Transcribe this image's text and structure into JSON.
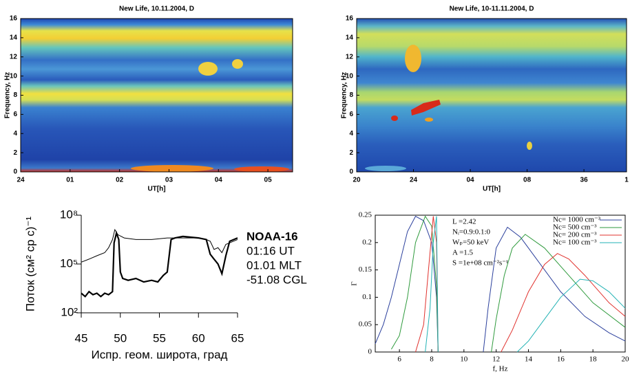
{
  "chart_data": [
    {
      "type": "spectrogram",
      "title": "New Life, 10.11.2004, D",
      "xlabel": "UT[h]",
      "ylabel": "Frequency, Hz",
      "xlim": [
        0,
        5.5
      ],
      "xticks": [
        {
          "value": 0,
          "label": "24"
        },
        {
          "value": 1,
          "label": "01"
        },
        {
          "value": 2,
          "label": "02"
        },
        {
          "value": 3,
          "label": "03"
        },
        {
          "value": 4,
          "label": "04"
        },
        {
          "value": 5,
          "label": "05"
        }
      ],
      "ylim": [
        0,
        16
      ],
      "yticks": [
        0,
        2,
        4,
        6,
        8,
        10,
        12,
        14,
        16
      ]
    },
    {
      "type": "spectrogram",
      "title": "New Life, 10-11.11.2004, D",
      "xlabel": "UT[h]",
      "ylabel": "Frequency, Hz",
      "xlim": [
        20,
        39
      ],
      "xticks": [
        20,
        24,
        {
          "value": 28,
          "label": "04"
        },
        {
          "value": 32,
          "label": "08"
        },
        36,
        {
          "value": 39,
          "label": "1"
        }
      ],
      "ylim": [
        0,
        16
      ],
      "yticks": [
        0,
        2,
        4,
        6,
        8,
        10,
        12,
        14,
        16
      ]
    },
    {
      "type": "line",
      "ylabel": "Поток (см² ср с)⁻¹",
      "xlabel": "Испр. геом. широта, град",
      "log_y": true,
      "xlim": [
        45,
        65
      ],
      "xticks": [
        45,
        50,
        55,
        60,
        65
      ],
      "ylim": [
        100,
        100000000
      ],
      "yticks": [
        {
          "value": 100,
          "label": "10²"
        },
        {
          "value": 100000,
          "label": "10⁵"
        },
        {
          "value": 100000000,
          "label": "10⁸"
        }
      ],
      "annotations": [
        "NOAA-16",
        "01:16 UT",
        "01.01 MLT",
        "-51.08 CGL"
      ],
      "series": [
        {
          "color": "#000000",
          "x": [
            45,
            46,
            47,
            48,
            48.5,
            49,
            49.3,
            49.7,
            50.5,
            52,
            54,
            56,
            58,
            60,
            61,
            61.5,
            62,
            62.5,
            63,
            63.5,
            64,
            65
          ],
          "values": [
            130000,
            200000,
            320000,
            500000,
            1000000,
            3200000,
            13000000,
            6300000,
            4000000,
            3200000,
            3200000,
            4000000,
            4000000,
            4000000,
            3200000,
            2500000,
            790000,
            1000000,
            500000,
            1600000,
            2000000,
            3200000
          ]
        },
        {
          "color": "#000000",
          "x": [
            45,
            45.5,
            46,
            46.5,
            47,
            47.5,
            48,
            48.5,
            49,
            49.2,
            49.5,
            49.8,
            50,
            50.3,
            51,
            52,
            53,
            54,
            54.8,
            55.5,
            56,
            56.5,
            57,
            58,
            60,
            61,
            61.5,
            62,
            62.5,
            63,
            63.5,
            64,
            65
          ],
          "values": [
            1600,
            1000,
            2000,
            1300,
            1600,
            1000,
            1600,
            1300,
            2000,
            2000000,
            7900000,
            3200000,
            32000,
            13000,
            10000,
            13000,
            7900,
            10000,
            7900,
            20000,
            32000,
            3200000,
            4000000,
            5000000,
            4000000,
            3200000,
            400000,
            200000,
            100000,
            25000,
            320000,
            2500000,
            4000000
          ]
        }
      ]
    },
    {
      "type": "line",
      "ylabel": "Γ",
      "xlabel": "f, Hz",
      "legend": "upper right",
      "xlim": [
        4.5,
        20
      ],
      "xticks": [
        6,
        8,
        10,
        12,
        14,
        16,
        18,
        20
      ],
      "ylim": [
        0,
        0.25
      ],
      "yticks": [
        0,
        0.05,
        0.1,
        0.15,
        0.2,
        0.25
      ],
      "annotations": [
        "L =2.42",
        "Nᵢ=0.9:0.1:0",
        "Wₚ=50 keV",
        "A =1.5",
        "S =1e+08 cm⁻²s⁻¹"
      ],
      "series": [
        {
          "name": "Nc= 1000 cm⁻³",
          "color": "#2a3f9c",
          "x": [
            4.5,
            5,
            5.5,
            6,
            6.5,
            7,
            7.5,
            8,
            8.3,
            8.4,
            9.5,
            11.2,
            11.5,
            12,
            12.7,
            13.5,
            14.5,
            16,
            17.5,
            19,
            20
          ],
          "values": [
            0.015,
            0.05,
            0.1,
            0.16,
            0.22,
            0.248,
            0.24,
            0.2,
            0.1,
            0,
            null,
            0,
            0.08,
            0.19,
            0.228,
            0.21,
            0.17,
            0.11,
            0.065,
            0.035,
            0.02
          ]
        },
        {
          "name": "Nc= 500 cm⁻³",
          "color": "#2e9a3c",
          "x": [
            5.5,
            6,
            6.5,
            7,
            7.6,
            8,
            8.3,
            8.4,
            9.5,
            11.7,
            12,
            12.5,
            13,
            13.8,
            15,
            16.5,
            18,
            20
          ],
          "values": [
            0.005,
            0.03,
            0.1,
            0.2,
            0.248,
            0.23,
            0.12,
            0,
            null,
            0,
            0.06,
            0.14,
            0.19,
            0.215,
            0.19,
            0.14,
            0.09,
            0.045
          ]
        },
        {
          "name": "Nc= 200 cm⁻³",
          "color": "#e0302c",
          "x": [
            7,
            7.5,
            7.8,
            8.1,
            8.3,
            8.4,
            9.5,
            12.3,
            13,
            14,
            15,
            15.8,
            16.5,
            17.5,
            19,
            20
          ],
          "values": [
            0,
            0.05,
            0.15,
            0.248,
            0.2,
            0,
            null,
            0,
            0.04,
            0.11,
            0.16,
            0.18,
            0.17,
            0.14,
            0.09,
            0.065
          ]
        },
        {
          "name": "Nc= 100 cm⁻³",
          "color": "#22b2b4",
          "x": [
            7.6,
            7.9,
            8.1,
            8.3,
            8.4,
            9.5,
            13.3,
            14,
            15,
            16,
            17.2,
            18,
            19,
            20
          ],
          "values": [
            0,
            0.08,
            0.2,
            0.248,
            0,
            null,
            0,
            0.02,
            0.06,
            0.1,
            0.133,
            0.13,
            0.11,
            0.08
          ]
        }
      ]
    }
  ]
}
